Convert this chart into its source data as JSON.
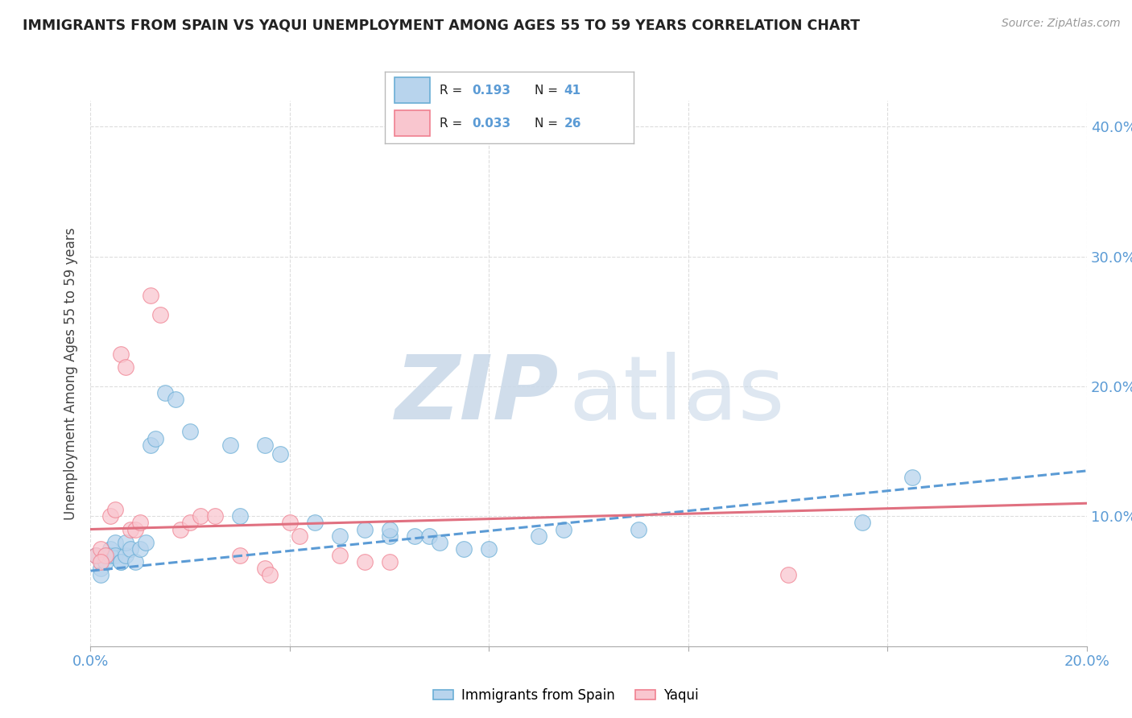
{
  "title": "IMMIGRANTS FROM SPAIN VS YAQUI UNEMPLOYMENT AMONG AGES 55 TO 59 YEARS CORRELATION CHART",
  "source": "Source: ZipAtlas.com",
  "ylabel": "Unemployment Among Ages 55 to 59 years",
  "xlim": [
    0.0,
    0.2
  ],
  "ylim": [
    0.0,
    0.42
  ],
  "xticks": [
    0.0,
    0.04,
    0.08,
    0.12,
    0.16,
    0.2
  ],
  "xtick_labels": [
    "0.0%",
    "",
    "",
    "",
    "",
    "20.0%"
  ],
  "yticks": [
    0.0,
    0.1,
    0.2,
    0.3,
    0.4
  ],
  "ytick_labels": [
    "",
    "10.0%",
    "20.0%",
    "30.0%",
    "40.0%"
  ],
  "legend_R_blue": "0.193",
  "legend_N_blue": "41",
  "legend_R_pink": "0.033",
  "legend_N_pink": "26",
  "blue_fill": "#b8d4ed",
  "pink_fill": "#f9c6cf",
  "blue_edge": "#6aaed6",
  "pink_edge": "#f08090",
  "blue_line_color": "#5b9bd5",
  "pink_line_color": "#e07080",
  "blue_scatter": [
    [
      0.001,
      0.07
    ],
    [
      0.002,
      0.06
    ],
    [
      0.002,
      0.055
    ],
    [
      0.003,
      0.07
    ],
    [
      0.003,
      0.065
    ],
    [
      0.004,
      0.075
    ],
    [
      0.004,
      0.07
    ],
    [
      0.005,
      0.08
    ],
    [
      0.005,
      0.07
    ],
    [
      0.006,
      0.065
    ],
    [
      0.006,
      0.065
    ],
    [
      0.007,
      0.07
    ],
    [
      0.007,
      0.08
    ],
    [
      0.008,
      0.075
    ],
    [
      0.009,
      0.065
    ],
    [
      0.01,
      0.075
    ],
    [
      0.011,
      0.08
    ],
    [
      0.012,
      0.155
    ],
    [
      0.013,
      0.16
    ],
    [
      0.015,
      0.195
    ],
    [
      0.017,
      0.19
    ],
    [
      0.02,
      0.165
    ],
    [
      0.028,
      0.155
    ],
    [
      0.03,
      0.1
    ],
    [
      0.035,
      0.155
    ],
    [
      0.038,
      0.148
    ],
    [
      0.045,
      0.095
    ],
    [
      0.05,
      0.085
    ],
    [
      0.055,
      0.09
    ],
    [
      0.06,
      0.085
    ],
    [
      0.06,
      0.09
    ],
    [
      0.065,
      0.085
    ],
    [
      0.068,
      0.085
    ],
    [
      0.07,
      0.08
    ],
    [
      0.075,
      0.075
    ],
    [
      0.08,
      0.075
    ],
    [
      0.09,
      0.085
    ],
    [
      0.095,
      0.09
    ],
    [
      0.11,
      0.09
    ],
    [
      0.155,
      0.095
    ],
    [
      0.165,
      0.13
    ]
  ],
  "pink_scatter": [
    [
      0.001,
      0.07
    ],
    [
      0.002,
      0.075
    ],
    [
      0.003,
      0.07
    ],
    [
      0.004,
      0.1
    ],
    [
      0.005,
      0.105
    ],
    [
      0.006,
      0.225
    ],
    [
      0.007,
      0.215
    ],
    [
      0.008,
      0.09
    ],
    [
      0.009,
      0.09
    ],
    [
      0.01,
      0.095
    ],
    [
      0.012,
      0.27
    ],
    [
      0.014,
      0.255
    ],
    [
      0.018,
      0.09
    ],
    [
      0.02,
      0.095
    ],
    [
      0.022,
      0.1
    ],
    [
      0.025,
      0.1
    ],
    [
      0.03,
      0.07
    ],
    [
      0.035,
      0.06
    ],
    [
      0.036,
      0.055
    ],
    [
      0.04,
      0.095
    ],
    [
      0.042,
      0.085
    ],
    [
      0.05,
      0.07
    ],
    [
      0.055,
      0.065
    ],
    [
      0.06,
      0.065
    ],
    [
      0.14,
      0.055
    ],
    [
      0.002,
      0.065
    ]
  ],
  "blue_trend_x": [
    0.0,
    0.2
  ],
  "blue_trend_y": [
    0.058,
    0.135
  ],
  "pink_trend_x": [
    0.0,
    0.2
  ],
  "pink_trend_y": [
    0.09,
    0.11
  ],
  "background_color": "#ffffff",
  "grid_color": "#dddddd"
}
